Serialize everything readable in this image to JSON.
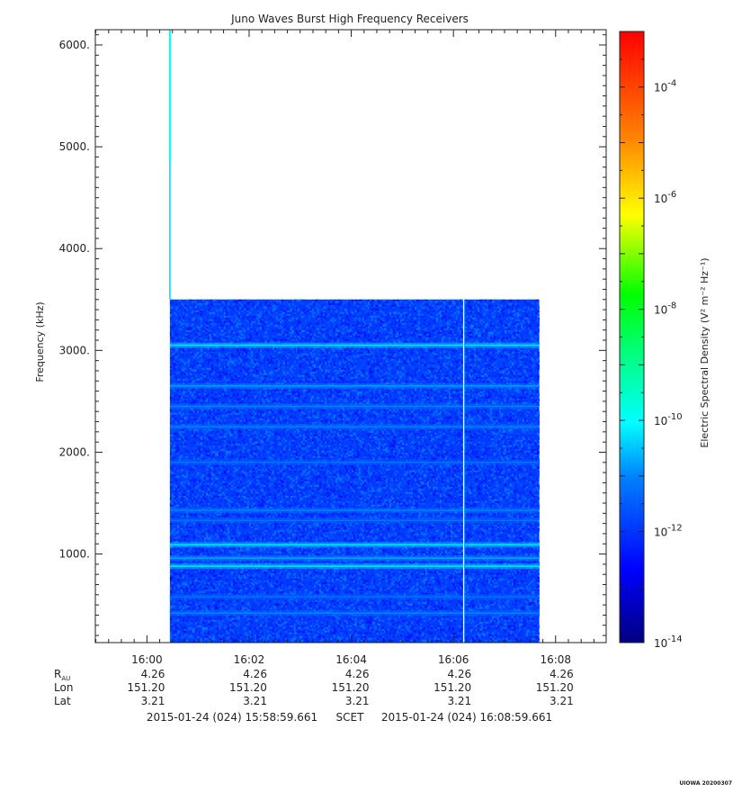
{
  "chart_data": {
    "type": "heatmap",
    "title": "Juno Waves Burst High Frequency Receivers",
    "ylabel": "Frequency (kHz)",
    "ylim": [
      130,
      6150
    ],
    "yticks": [
      {
        "value": 1000,
        "label": "1000."
      },
      {
        "value": 2000,
        "label": "2000."
      },
      {
        "value": 3000,
        "label": "3000."
      },
      {
        "value": 4000,
        "label": "4000."
      },
      {
        "value": 5000,
        "label": "5000."
      },
      {
        "value": 6000,
        "label": "6000."
      }
    ],
    "x_start": "2015-01-24 (024) 15:58:59.661",
    "x_end": "2015-01-24 (024) 16:08:59.661",
    "x_scale_label": "SCET",
    "xlim_minutes": [
      958.99,
      968.99
    ],
    "xticks": [
      {
        "minute": 960,
        "label": "16:00"
      },
      {
        "minute": 962,
        "label": "16:02"
      },
      {
        "minute": 964,
        "label": "16:04"
      },
      {
        "minute": 966,
        "label": "16:06"
      },
      {
        "minute": 968,
        "label": "16:08"
      }
    ],
    "ephemeris": [
      {
        "label": "R",
        "sub": "AU",
        "values": [
          "4.26",
          "4.26",
          "4.26",
          "4.26",
          "4.26"
        ]
      },
      {
        "label": "Lon",
        "sub": "",
        "values": [
          "151.20",
          "151.20",
          "151.20",
          "151.20",
          "151.20"
        ]
      },
      {
        "label": "Lat",
        "sub": "",
        "values": [
          "3.21",
          "3.21",
          "3.21",
          "3.21",
          "3.21"
        ]
      }
    ],
    "data_block": {
      "t_start_minute": 960.45,
      "t_end_minute": 967.68,
      "f_max_khz": 3500,
      "background_log10": -11.9,
      "speckle_log10_range": [
        -12.6,
        -11.0
      ]
    },
    "spike": {
      "minute": 960.45,
      "f_low_khz": 3500,
      "f_high_khz": 6150,
      "log10_level": -10.4,
      "bright_f_low_khz": 4850,
      "bright_log10_level": -10.0
    },
    "gap_line": {
      "minute": 966.2,
      "log10_level": -10.8
    },
    "bands": [
      {
        "f_khz": 3050,
        "log10_level": -10.5
      },
      {
        "f_khz": 2650,
        "log10_level": -11.1
      },
      {
        "f_khz": 2450,
        "log10_level": -11.3
      },
      {
        "f_khz": 2250,
        "log10_level": -11.3
      },
      {
        "f_khz": 1900,
        "log10_level": -11.5
      },
      {
        "f_khz": 1430,
        "log10_level": -11.3
      },
      {
        "f_khz": 1330,
        "log10_level": -11.5
      },
      {
        "f_khz": 1090,
        "log10_level": -10.5
      },
      {
        "f_khz": 960,
        "log10_level": -11.0
      },
      {
        "f_khz": 880,
        "log10_level": -10.5
      },
      {
        "f_khz": 580,
        "log10_level": -11.5
      },
      {
        "f_khz": 420,
        "log10_level": -11.3
      }
    ],
    "colorbar": {
      "label": "Electric Spectral Density",
      "units": "(V² m⁻² Hz⁻¹)",
      "log10_range": [
        -14,
        -3
      ],
      "ticks": [
        {
          "base": "10",
          "exp": "-4",
          "log10": -4
        },
        {
          "base": "10",
          "exp": "-6",
          "log10": -6
        },
        {
          "base": "10",
          "exp": "-8",
          "log10": -8
        },
        {
          "base": "10",
          "exp": "-10",
          "log10": -10
        },
        {
          "base": "10",
          "exp": "-12",
          "log10": -12
        },
        {
          "base": "10",
          "exp": "-14",
          "log10": -14
        }
      ]
    },
    "footer_mark": "UIOWA 20200307"
  }
}
